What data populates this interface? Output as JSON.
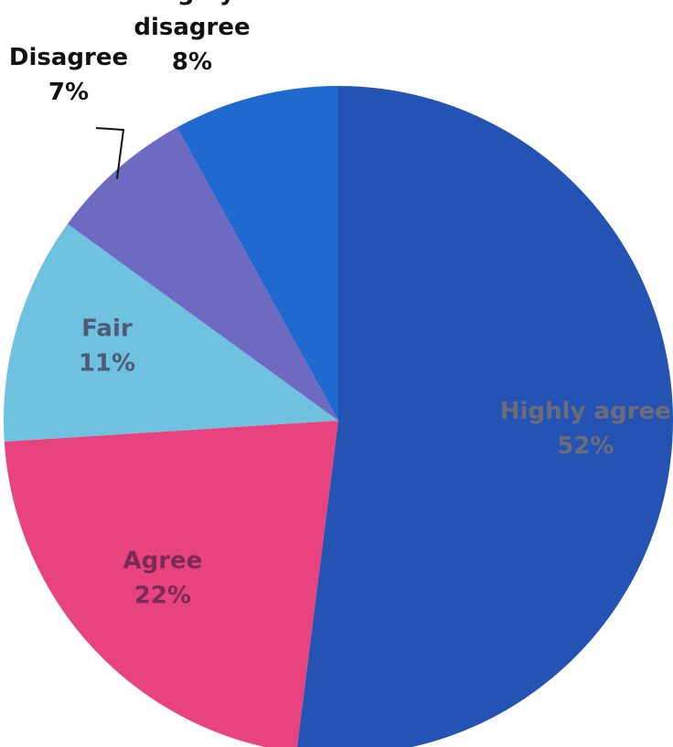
{
  "chart_data": {
    "type": "pie",
    "title": "",
    "start_angle_deg": 0,
    "direction": "clockwise",
    "slices": [
      {
        "name": "Highly agree",
        "label_lines": [
          "Highly agree",
          "52%"
        ],
        "value": 52,
        "color": "#2453b4",
        "label_color": "#6b6b7a",
        "label_position": "inside"
      },
      {
        "name": "Agree",
        "label_lines": [
          "Agree",
          "22%"
        ],
        "value": 22,
        "color": "#e8437f",
        "label_color": "#7a2b55",
        "label_position": "inside"
      },
      {
        "name": "Fair",
        "label_lines": [
          "Fair",
          "11%"
        ],
        "value": 11,
        "color": "#6fc2df",
        "label_color": "#4f5a78",
        "label_position": "inside"
      },
      {
        "name": "Disagree",
        "label_lines": [
          "Disagree",
          "7%"
        ],
        "value": 7,
        "color": "#6e6ac2",
        "label_color": "#111111",
        "label_position": "outside-left"
      },
      {
        "name": "Highly disagree",
        "label_lines": [
          "Highly",
          "disagree",
          "8%"
        ],
        "value": 8,
        "color": "#1f69cf",
        "label_color": "#111111",
        "label_position": "outside-top"
      }
    ]
  }
}
